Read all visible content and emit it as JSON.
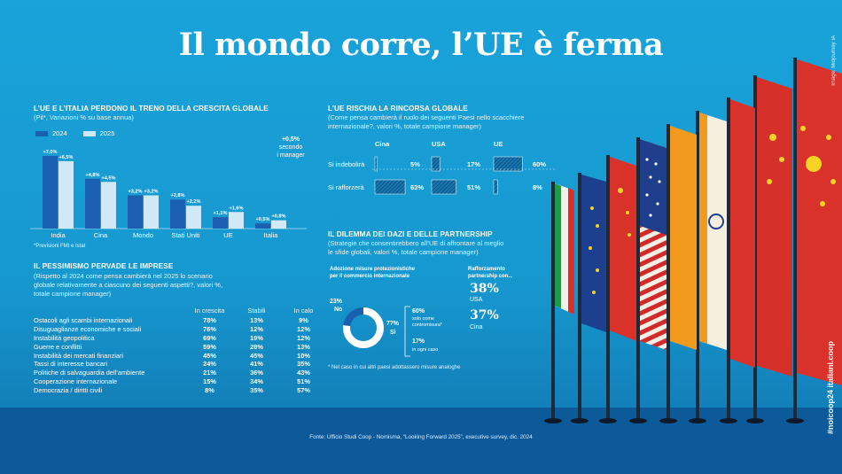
{
  "title": "Il mondo corre, l’UE è ferma",
  "credit_top": "Image: Midjourney IA",
  "credit_side": "#noicoop24 italiani.coop",
  "growth": {
    "title": "L’UE E L’ITALIA PERDONO IL TRENO DELLA CRESCITA GLOBALE",
    "subtitle": "(Pil*, Variazioni % su base annua)",
    "footnote": "*Previsioni FMI e Istat",
    "manager_note": [
      "+0,5%",
      "secondo",
      "i manager"
    ]
  },
  "risk": {
    "title": "IL PESSIMISMO PERVADE LE IMPRESE",
    "subtitle": [
      "(Rispetto al 2024 come pensa cambierà nel 2025 lo scenario",
      "globale relativamente a ciascuno dei seguenti aspetti?, valori %,",
      "totale campione manager)"
    ]
  },
  "rincorsa": {
    "title": "L’UE RISCHIA LA RINCORSA GLOBALE",
    "subtitle": [
      "(Come pensa cambierà il ruolo dei seguenti Paesi nello scacchiere",
      "internazionale?, valori %, totale campione manager)"
    ]
  },
  "dazi": {
    "title": "IL DILEMMA DEI DAZI E DELLE PARTNERSHIP",
    "subtitle": [
      "(Strategie che consentirebbero all’UE di affrontare al meglio",
      "le sfide globali, valori %, totale campione manager)"
    ],
    "left_head": [
      "Adozione misure protezionistiche",
      "per il commercio internazionale"
    ],
    "right_head": [
      "Rafforzamento",
      "partnership con..."
    ],
    "no_label": "No",
    "si_label": "Sì",
    "no_value": "23%",
    "si_value": "77%",
    "solo_value": "60%",
    "solo_label": [
      "solo come",
      "contromisura*"
    ],
    "ogni_value": "17%",
    "ogni_label": "in ogni caso",
    "usa_value": "38%",
    "usa_label": "USA",
    "cina_value": "37%",
    "cina_label": "Cina",
    "footnote": "* Nel caso in cui altri paesi adottassero misure analoghe"
  },
  "source": "Fonte: Ufficio Studi Coop - Nomisma, “Looking Forward 2025”, executive survey, dic. 2024",
  "colors": {
    "bar2024": "#1b5fb0",
    "bar2025": "#cfe9f8",
    "dark": "#1a4f8f"
  },
  "chart_data": [
    {
      "type": "bar",
      "title": "L’UE E L’ITALIA PERDONO IL TRENO DELLA CRESCITA GLOBALE",
      "categories": [
        "India",
        "Cina",
        "Mondo",
        "Stati Uniti",
        "UE",
        "Italia"
      ],
      "series": [
        {
          "name": "2024",
          "values": [
            7.0,
            4.8,
            3.2,
            2.8,
            1.1,
            0.5
          ],
          "labels": [
            "+7,0%",
            "+4,8%",
            "+3,2%",
            "+2,8%",
            "+1,1%",
            "+0,5%"
          ]
        },
        {
          "name": "2025",
          "values": [
            6.5,
            4.5,
            3.2,
            2.2,
            1.6,
            0.8
          ],
          "labels": [
            "+6,5%",
            "+4,5%",
            "+3,2%",
            "+2,2%",
            "+1,6%",
            "+0,8%"
          ]
        }
      ]
    },
    {
      "type": "bar",
      "title": "L’UE RISCHIA LA RINCORSA GLOBALE",
      "categories": [
        "Si indebolirà",
        "Si rafforzerà"
      ],
      "series": [
        {
          "name": "Cina",
          "values": [
            5,
            63
          ]
        },
        {
          "name": "USA",
          "values": [
            17,
            51
          ]
        },
        {
          "name": "UE",
          "values": [
            60,
            8
          ]
        }
      ]
    },
    {
      "type": "table",
      "title": "IL PESSIMISMO PERVADE LE IMPRESE",
      "columns": [
        "In crescita",
        "Stabili",
        "In calo"
      ],
      "rows": [
        {
          "label": "Ostacoli agli scambi internazionali",
          "values": [
            "78%",
            "13%",
            "9%"
          ]
        },
        {
          "label": "Disuguaglianze economiche e sociali",
          "values": [
            "76%",
            "12%",
            "12%"
          ]
        },
        {
          "label": "Instabilità geopolitica",
          "values": [
            "69%",
            "19%",
            "12%"
          ]
        },
        {
          "label": "Guerre e conflitti",
          "values": [
            "59%",
            "28%",
            "13%"
          ]
        },
        {
          "label": "Instabilità dei mercati finanziari",
          "values": [
            "45%",
            "45%",
            "10%"
          ]
        },
        {
          "label": "Tassi di interesse bancari",
          "values": [
            "24%",
            "41%",
            "35%"
          ]
        },
        {
          "label": "Politiche di salvaguardia dell’ambiente",
          "values": [
            "21%",
            "36%",
            "43%"
          ]
        },
        {
          "label": "Cooperazione internazionale",
          "values": [
            "15%",
            "34%",
            "51%"
          ]
        },
        {
          "label": "Democrazia / diritti civili",
          "values": [
            "8%",
            "35%",
            "57%"
          ]
        }
      ]
    },
    {
      "type": "pie",
      "title": "IL DILEMMA DEI DAZI E DELLE PARTNERSHIP",
      "labels": [
        "Sì",
        "No"
      ],
      "values": [
        77,
        23
      ]
    }
  ]
}
